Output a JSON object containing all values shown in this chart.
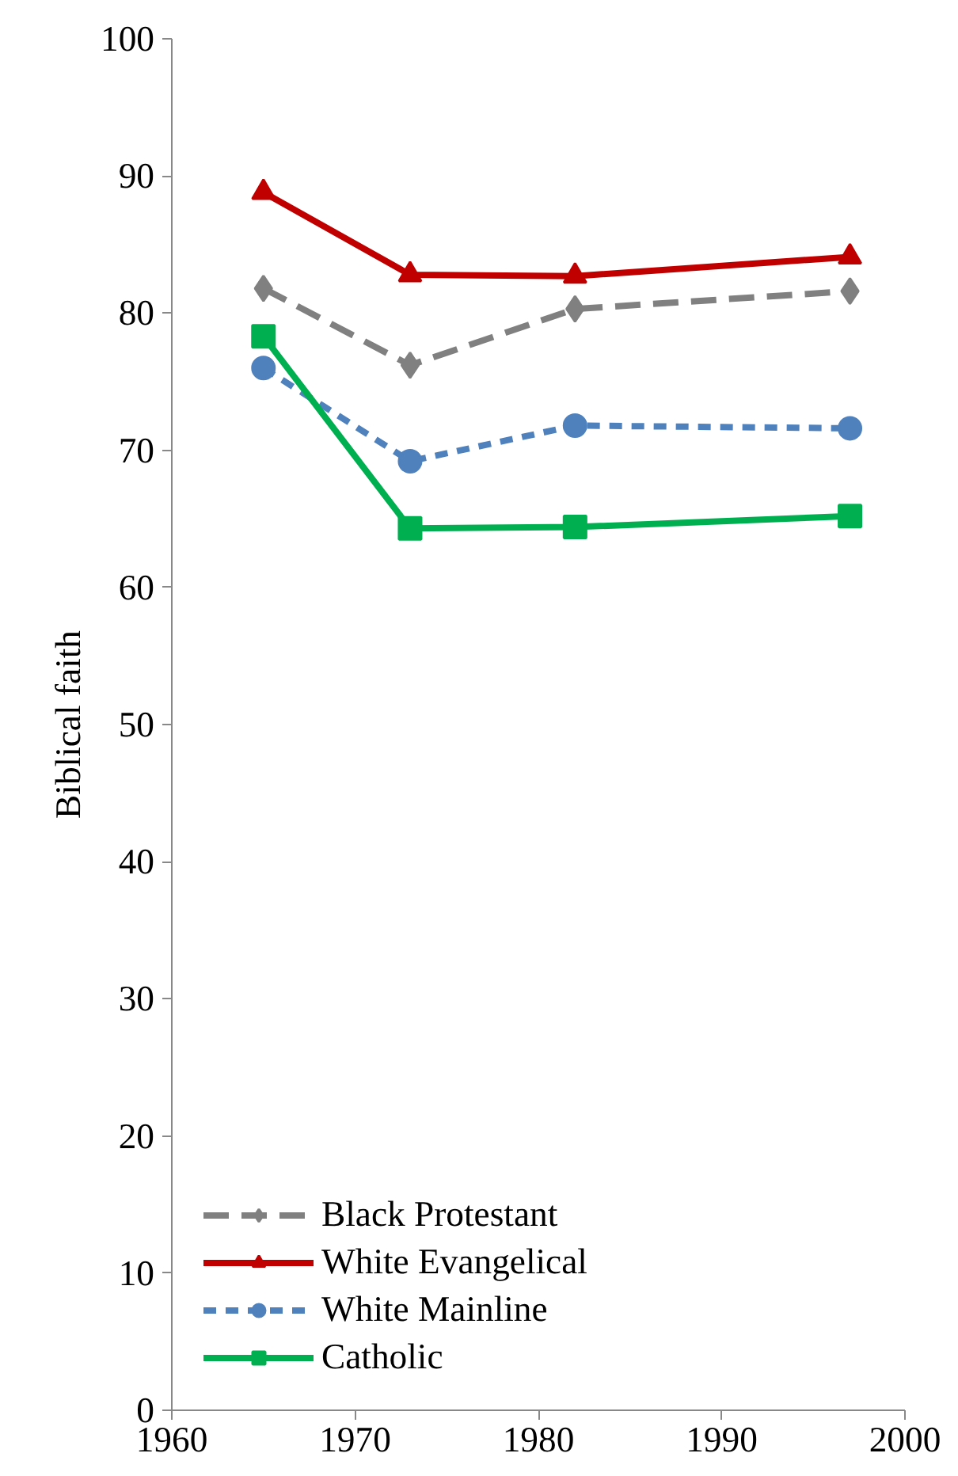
{
  "chart_data": {
    "type": "line",
    "ylabel": "Biblical faith",
    "x": [
      1965,
      1973,
      1982,
      1997
    ],
    "series": [
      {
        "name": "Black Protestant",
        "color": "#808080",
        "marker": "diamond",
        "line_style": "dashed",
        "values": [
          81.8,
          76.2,
          80.3,
          81.6
        ]
      },
      {
        "name": "White Evangelical",
        "color": "#c00000",
        "marker": "triangle",
        "line_style": "solid",
        "values": [
          88.8,
          82.8,
          82.7,
          84.1
        ]
      },
      {
        "name": "White Mainline",
        "color": "#4f81bd",
        "marker": "circle",
        "line_style": "dotted",
        "values": [
          76.0,
          69.2,
          71.8,
          71.6
        ]
      },
      {
        "name": "Catholic",
        "color": "#00b050",
        "marker": "square",
        "line_style": "solid",
        "values": [
          78.3,
          64.3,
          64.4,
          65.2
        ]
      }
    ],
    "xlim": [
      1960,
      2000
    ],
    "xticks": [
      1960,
      1970,
      1980,
      1990,
      2000
    ],
    "ylim": [
      0,
      100
    ],
    "yticks": [
      0,
      10,
      20,
      30,
      40,
      50,
      60,
      70,
      80,
      90,
      100
    ],
    "grid": false,
    "legend": "bottom left"
  }
}
